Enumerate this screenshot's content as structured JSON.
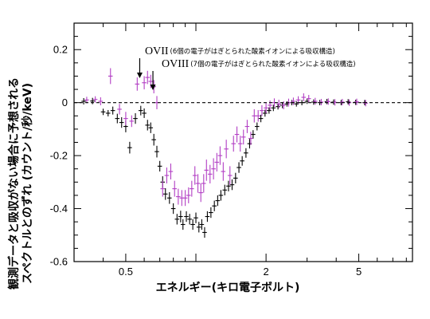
{
  "chart_data": {
    "type": "scatter",
    "title": "",
    "xlabel": "エネルギー(キロ電子ボルト)",
    "ylabel_line1": "観測データと吸収がない場合に予想される",
    "ylabel_line2": "スペクトルとのずれ (カウント/秒/keV)",
    "xscale": "log",
    "xlim": [
      0.3,
      8.5
    ],
    "ylim": [
      -0.6,
      0.3
    ],
    "x_ticks": [
      0.5,
      2,
      5
    ],
    "x_tick_labels": [
      "0.5",
      "2",
      "5"
    ],
    "y_ticks": [
      0.2,
      0,
      -0.2,
      -0.4,
      -0.6
    ],
    "y_tick_labels": [
      "0.2",
      "0",
      "-0.2",
      "-0.4",
      "-0.6"
    ],
    "grid": false,
    "reference_line": {
      "y": 0,
      "style": "dashed",
      "color": "#000000"
    },
    "annotations": [
      {
        "name": "ovii",
        "label": "OVII",
        "note": "(6個の電子がはぎとられた酸素イオンによる吸収構造)",
        "x": 0.574
      },
      {
        "name": "oviii",
        "label": "OVIII",
        "note": "(7個の電子がはぎとられた酸素イオンによる吸収構造)",
        "x": 0.654
      }
    ],
    "series": [
      {
        "color": "#000000",
        "points": [
          [
            0.33,
            0.005,
            0.012
          ],
          [
            0.36,
            0.006,
            0.012
          ],
          [
            0.4,
            -0.035,
            0.012
          ],
          [
            0.42,
            -0.04,
            0.012
          ],
          [
            0.44,
            -0.03,
            0.015
          ],
          [
            0.46,
            -0.06,
            0.018
          ],
          [
            0.48,
            -0.075,
            0.02
          ],
          [
            0.5,
            -0.09,
            0.022
          ],
          [
            0.52,
            -0.17,
            0.022
          ],
          [
            0.55,
            -0.06,
            0.02
          ],
          [
            0.58,
            -0.03,
            0.018
          ],
          [
            0.6,
            -0.04,
            0.018
          ],
          [
            0.62,
            -0.085,
            0.02
          ],
          [
            0.64,
            -0.095,
            0.02
          ],
          [
            0.66,
            -0.14,
            0.022
          ],
          [
            0.68,
            -0.185,
            0.022
          ],
          [
            0.7,
            -0.24,
            0.02
          ],
          [
            0.72,
            -0.3,
            0.022
          ],
          [
            0.74,
            -0.345,
            0.022
          ],
          [
            0.77,
            -0.36,
            0.022
          ],
          [
            0.8,
            -0.4,
            0.02
          ],
          [
            0.83,
            -0.44,
            0.02
          ],
          [
            0.86,
            -0.43,
            0.022
          ],
          [
            0.88,
            -0.46,
            0.02
          ],
          [
            0.91,
            -0.43,
            0.02
          ],
          [
            0.94,
            -0.44,
            0.02
          ],
          [
            0.97,
            -0.46,
            0.02
          ],
          [
            1.0,
            -0.435,
            0.02
          ],
          [
            1.03,
            -0.47,
            0.02
          ],
          [
            1.06,
            -0.46,
            0.02
          ],
          [
            1.09,
            -0.49,
            0.02
          ],
          [
            1.12,
            -0.43,
            0.02
          ],
          [
            1.16,
            -0.415,
            0.02
          ],
          [
            1.2,
            -0.39,
            0.02
          ],
          [
            1.24,
            -0.37,
            0.02
          ],
          [
            1.28,
            -0.35,
            0.02
          ],
          [
            1.33,
            -0.33,
            0.02
          ],
          [
            1.38,
            -0.315,
            0.02
          ],
          [
            1.43,
            -0.31,
            0.02
          ],
          [
            1.48,
            -0.285,
            0.02
          ],
          [
            1.53,
            -0.245,
            0.02
          ],
          [
            1.58,
            -0.22,
            0.018
          ],
          [
            1.64,
            -0.19,
            0.018
          ],
          [
            1.7,
            -0.155,
            0.018
          ],
          [
            1.76,
            -0.12,
            0.016
          ],
          [
            1.83,
            -0.09,
            0.015
          ],
          [
            1.9,
            -0.06,
            0.014
          ],
          [
            1.98,
            -0.04,
            0.013
          ],
          [
            2.06,
            -0.03,
            0.012
          ],
          [
            2.15,
            -0.02,
            0.012
          ],
          [
            2.25,
            -0.015,
            0.011
          ],
          [
            2.35,
            -0.01,
            0.011
          ],
          [
            2.46,
            -0.005,
            0.01
          ],
          [
            2.58,
            0.0,
            0.01
          ],
          [
            2.7,
            -0.005,
            0.01
          ],
          [
            2.85,
            0.0,
            0.01
          ],
          [
            3.0,
            0.005,
            0.01
          ],
          [
            3.2,
            0.002,
            0.01
          ],
          [
            3.4,
            0.0,
            0.01
          ],
          [
            3.65,
            0.004,
            0.01
          ],
          [
            3.9,
            0.002,
            0.01
          ],
          [
            4.2,
            0.0,
            0.01
          ],
          [
            4.5,
            0.003,
            0.01
          ],
          [
            4.85,
            0.001,
            0.01
          ],
          [
            5.3,
            0.0,
            0.01
          ]
        ]
      },
      {
        "color": "#b23ec4",
        "points": [
          [
            0.34,
            0.01,
            0.012
          ],
          [
            0.37,
            0.012,
            0.012
          ],
          [
            0.39,
            0.005,
            0.015
          ],
          [
            0.43,
            0.1,
            0.03
          ],
          [
            0.47,
            -0.025,
            0.02
          ],
          [
            0.5,
            -0.06,
            0.025
          ],
          [
            0.53,
            -0.07,
            0.022
          ],
          [
            0.56,
            0.07,
            0.025
          ],
          [
            0.6,
            0.075,
            0.025
          ],
          [
            0.62,
            0.095,
            0.025
          ],
          [
            0.64,
            0.08,
            0.025
          ],
          [
            0.66,
            0.06,
            0.025
          ],
          [
            0.68,
            0.0,
            0.025
          ],
          [
            0.72,
            -0.325,
            0.03
          ],
          [
            0.75,
            -0.275,
            0.03
          ],
          [
            0.78,
            -0.26,
            0.03
          ],
          [
            0.81,
            -0.325,
            0.03
          ],
          [
            0.84,
            -0.355,
            0.03
          ],
          [
            0.87,
            -0.36,
            0.03
          ],
          [
            0.9,
            -0.36,
            0.03
          ],
          [
            0.93,
            -0.35,
            0.03
          ],
          [
            0.96,
            -0.325,
            0.03
          ],
          [
            0.99,
            -0.275,
            0.035
          ],
          [
            1.02,
            -0.305,
            0.035
          ],
          [
            1.05,
            -0.34,
            0.035
          ],
          [
            1.08,
            -0.305,
            0.035
          ],
          [
            1.11,
            -0.255,
            0.04
          ],
          [
            1.15,
            -0.27,
            0.035
          ],
          [
            1.19,
            -0.25,
            0.04
          ],
          [
            1.23,
            -0.225,
            0.035
          ],
          [
            1.27,
            -0.2,
            0.035
          ],
          [
            1.31,
            -0.26,
            0.035
          ],
          [
            1.35,
            -0.175,
            0.035
          ],
          [
            1.4,
            -0.275,
            0.035
          ],
          [
            1.45,
            -0.155,
            0.03
          ],
          [
            1.5,
            -0.12,
            0.03
          ],
          [
            1.55,
            -0.155,
            0.03
          ],
          [
            1.6,
            -0.13,
            0.028
          ],
          [
            1.66,
            -0.09,
            0.025
          ],
          [
            1.72,
            -0.135,
            0.025
          ],
          [
            1.78,
            -0.05,
            0.025
          ],
          [
            1.85,
            -0.05,
            0.022
          ],
          [
            1.92,
            -0.03,
            0.02
          ],
          [
            2.0,
            -0.02,
            0.02
          ],
          [
            2.08,
            -0.01,
            0.018
          ],
          [
            2.17,
            0.0,
            0.016
          ],
          [
            2.27,
            -0.005,
            0.016
          ],
          [
            2.38,
            -0.01,
            0.015
          ],
          [
            2.5,
            0.0,
            0.015
          ],
          [
            2.62,
            0.005,
            0.014
          ],
          [
            2.75,
            0.01,
            0.014
          ],
          [
            2.9,
            0.02,
            0.015
          ],
          [
            3.05,
            0.015,
            0.014
          ],
          [
            3.25,
            0.005,
            0.013
          ],
          [
            3.45,
            0.002,
            0.012
          ],
          [
            3.7,
            0.004,
            0.012
          ],
          [
            3.95,
            0.001,
            0.012
          ],
          [
            4.25,
            0.002,
            0.012
          ],
          [
            4.55,
            0.0,
            0.012
          ],
          [
            4.9,
            0.003,
            0.012
          ],
          [
            5.35,
            -0.002,
            0.012
          ]
        ]
      }
    ]
  }
}
